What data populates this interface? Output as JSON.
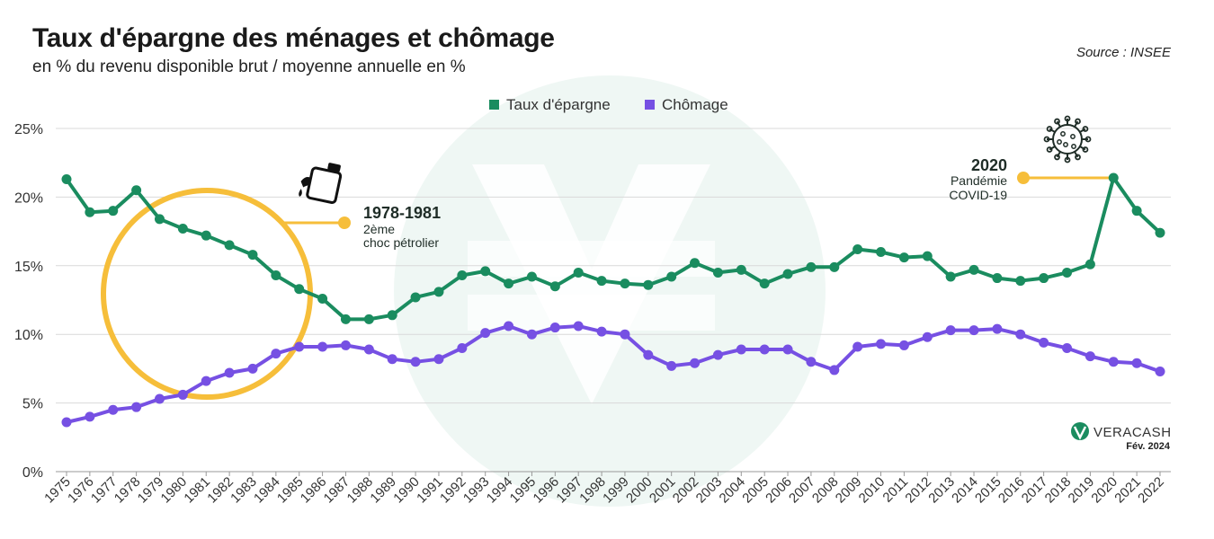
{
  "header": {
    "title": "Taux d'épargne des ménages et chômage",
    "subtitle": "en % du revenu disponible brut / moyenne annuelle en %",
    "source": "Source : INSEE"
  },
  "annotations": {
    "oil": {
      "years": "1978-1981",
      "line1": "2ème",
      "line2": "choc pétrolier"
    },
    "covid": {
      "year": "2020",
      "line1": "Pandémie",
      "line2": "COVID-19"
    }
  },
  "branding": {
    "name": "VERACASH",
    "date": "Fév. 2024"
  },
  "colors": {
    "savings": "#1a8c5f",
    "unemployment": "#7650e3",
    "highlight": "#f6be3a",
    "grid": "#d9d9d9"
  },
  "icons": {
    "oil": "oil-can-icon",
    "covid": "virus-icon",
    "brand": "veracash-logo-icon",
    "watermark": "veracash-watermark-icon"
  },
  "chart_data": {
    "type": "line",
    "title": "Taux d'épargne des ménages et chômage",
    "subtitle": "en % du revenu disponible brut / moyenne annuelle en %",
    "x": [
      "1975",
      "1976",
      "1977",
      "1978",
      "1979",
      "1980",
      "1981",
      "1982",
      "1983",
      "1984",
      "1985",
      "1986",
      "1987",
      "1988",
      "1989",
      "1990",
      "1991",
      "1992",
      "1993",
      "1994",
      "1995",
      "1996",
      "1997",
      "1998",
      "1999",
      "2000",
      "2001",
      "2002",
      "2003",
      "2004",
      "2005",
      "2006",
      "2007",
      "2008",
      "2009",
      "2010",
      "2011",
      "2012",
      "2013",
      "2014",
      "2015",
      "2016",
      "2017",
      "2018",
      "2019",
      "2020",
      "2021",
      "2022"
    ],
    "series": [
      {
        "name": "Taux d'épargne",
        "values": [
          21.3,
          18.9,
          19.0,
          20.5,
          18.4,
          17.7,
          17.2,
          16.5,
          15.8,
          14.3,
          13.3,
          12.6,
          11.1,
          11.1,
          11.4,
          12.7,
          13.1,
          14.3,
          14.6,
          13.7,
          14.2,
          13.5,
          14.5,
          13.9,
          13.7,
          13.6,
          14.2,
          15.2,
          14.5,
          14.7,
          13.7,
          14.4,
          14.9,
          14.9,
          16.2,
          16.0,
          15.6,
          15.7,
          14.2,
          14.7,
          14.1,
          13.9,
          14.1,
          14.5,
          15.1,
          21.4,
          19.0,
          17.4
        ]
      },
      {
        "name": "Chômage",
        "values": [
          3.6,
          4.0,
          4.5,
          4.7,
          5.3,
          5.6,
          6.6,
          7.2,
          7.5,
          8.6,
          9.1,
          9.1,
          9.2,
          8.9,
          8.2,
          8.0,
          8.2,
          9.0,
          10.1,
          10.6,
          10.0,
          10.5,
          10.6,
          10.2,
          10.0,
          8.5,
          7.7,
          7.9,
          8.5,
          8.9,
          8.9,
          8.9,
          8.0,
          7.4,
          9.1,
          9.3,
          9.2,
          9.8,
          10.3,
          10.3,
          10.4,
          10.0,
          9.4,
          9.0,
          8.4,
          8.0,
          7.9,
          7.3
        ]
      }
    ],
    "ylim": [
      0,
      25
    ],
    "yticks": [
      "0%",
      "5%",
      "10%",
      "15%",
      "20%",
      "25%"
    ],
    "grid": true,
    "legend": "top-center"
  }
}
